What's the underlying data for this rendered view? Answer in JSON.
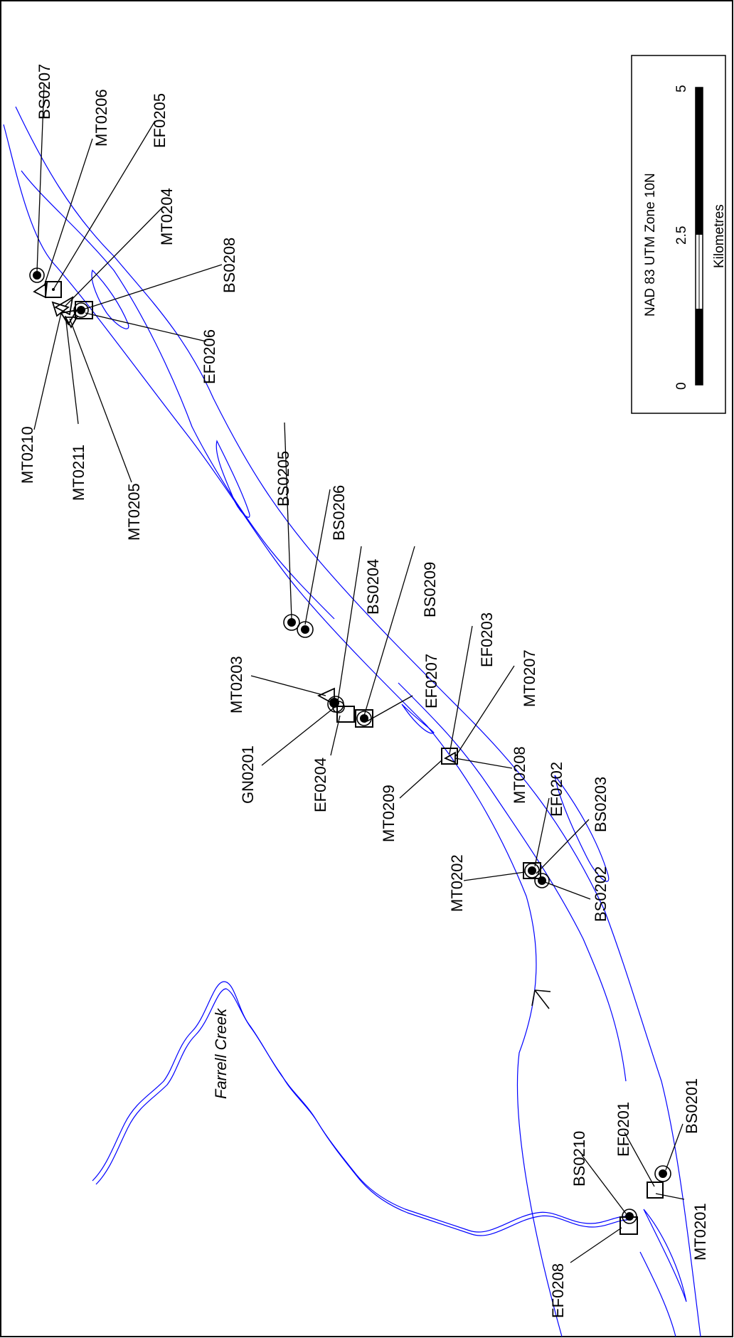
{
  "map": {
    "creek_label": "Farrell Creek",
    "legend": {
      "projection": "NAD 83 UTM Zone 10N",
      "unit": "Kilometres",
      "ticks": [
        "0",
        "2.5",
        "5"
      ]
    },
    "colors": {
      "river": "#0000ff",
      "ink": "#000000",
      "background": "#ffffff"
    },
    "icons": {
      "north_arrow": "north-arrow-icon",
      "bs_marker": "filled-circle-ring",
      "ef_marker": "square",
      "mt_marker": "triangle",
      "gn_marker": "filled-circle-ring"
    },
    "sites": [
      {
        "id": "BS0207"
      },
      {
        "id": "MT0206"
      },
      {
        "id": "EF0205"
      },
      {
        "id": "MT0204"
      },
      {
        "id": "BS0208"
      },
      {
        "id": "EF0206"
      },
      {
        "id": "MT0210"
      },
      {
        "id": "MT0211"
      },
      {
        "id": "MT0205"
      },
      {
        "id": "BS0205"
      },
      {
        "id": "BS0206"
      },
      {
        "id": "BS0204"
      },
      {
        "id": "BS0209"
      },
      {
        "id": "MT0203"
      },
      {
        "id": "EF0207"
      },
      {
        "id": "EF0203"
      },
      {
        "id": "MT0207"
      },
      {
        "id": "GN0201"
      },
      {
        "id": "EF0204"
      },
      {
        "id": "MT0209"
      },
      {
        "id": "MT0208"
      },
      {
        "id": "EF0202"
      },
      {
        "id": "BS0203"
      },
      {
        "id": "MT0202"
      },
      {
        "id": "BS0202"
      },
      {
        "id": "BS0210"
      },
      {
        "id": "EF0201"
      },
      {
        "id": "BS0201"
      },
      {
        "id": "EF0208"
      },
      {
        "id": "MT0201"
      }
    ]
  }
}
